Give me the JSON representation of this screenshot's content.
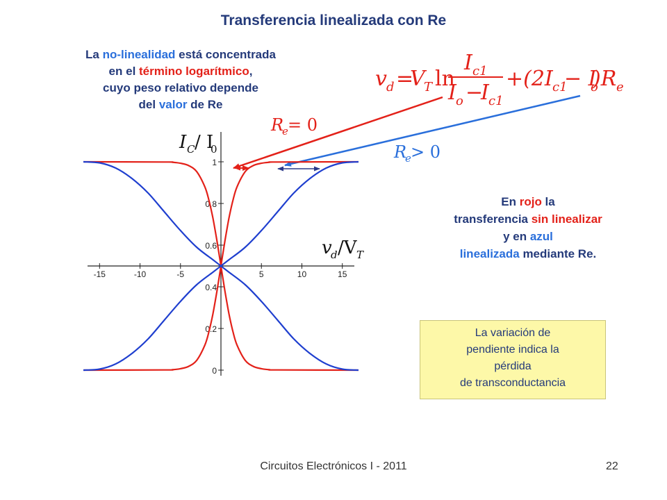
{
  "slide": {
    "title": "Transferencia linealizada con Re",
    "footer": "Circuitos Electrónicos I - 2011",
    "page_number": "22"
  },
  "description": {
    "p1": "La ",
    "p2": "no-linealidad",
    "p3": " está concentrada",
    "p4": "en el ",
    "p5": "término logarítmico",
    "p6": ",",
    "p7": "cuyo peso relativo depende",
    "p8": "del ",
    "p9": "valor",
    "p10": "  de Re"
  },
  "equation": {
    "lhs": "v",
    "lhs_sub": "d",
    "eq": "=",
    "vt": "V",
    "vt_sub": "T",
    "ln": "ln",
    "num": "I",
    "num_sub": "c1",
    "den_a": "I",
    "den_a_sub": "o",
    "minus": "−",
    "den_b": "I",
    "den_b_sub": "c1",
    "term2": "+(2I",
    "term2_sub": "c1",
    "term2b": " − I",
    "term2b_sub": "o",
    "term2c": ")R",
    "term2c_sub": "e"
  },
  "labels": {
    "re_zero": "R",
    "re_zero_sub": "e",
    "re_zero_rhs": " = 0",
    "re_pos": "R",
    "re_pos_sub": "e",
    "re_pos_rhs": " > 0",
    "y_axis": "I",
    "y_axis_sub": "C",
    "y_axis_slash": " / I",
    "y_axis_sub2": "0",
    "x_axis": "v",
    "x_axis_sub": "d",
    "x_axis_slash": " /V",
    "x_axis_sub2": "T"
  },
  "legend_text": {
    "l1a": "En ",
    "l1b": "rojo",
    "l1c": " la",
    "l2a": "transferencia ",
    "l2b": "sin linealizar",
    "l3a": "y en ",
    "l3b": "azul",
    "l4a": "linealizada",
    "l4b": " mediante Re."
  },
  "note": {
    "line1": "La variación de",
    "line2": "pendiente indica la",
    "line3": "pérdida",
    "line4": "de transconductancia"
  },
  "colors": {
    "red": "#e32119",
    "blue": "#1f3fcf",
    "text_blue": "#243a7a",
    "arrow_blue": "#2a6fdb",
    "note_bg": "#fdf8a8"
  },
  "chart_data": {
    "type": "line",
    "xlim": [
      -17,
      17
    ],
    "ylim": [
      0,
      1
    ],
    "x_ticks": [
      -15,
      -10,
      -5,
      5,
      10,
      15
    ],
    "x_tick_labels": [
      "-15",
      "-10",
      "-5",
      "5",
      "10",
      "15"
    ],
    "y_ticks": [
      0,
      0.2,
      0.4,
      0.6,
      0.8,
      1
    ],
    "y_tick_labels": [
      "0",
      "0.2",
      "0.4",
      "0.6",
      "0.8",
      "1"
    ],
    "x_axis_crosses_y_at": 0.5,
    "series": [
      {
        "color": "#e32119",
        "x": [
          -17,
          -7,
          -6,
          -5,
          -4,
          -3,
          -2,
          -1.5,
          -1,
          -0.5,
          0,
          0.5,
          1,
          1.5,
          2,
          3,
          4,
          5,
          6,
          7,
          17
        ],
        "y": [
          0,
          0.001,
          0.002,
          0.007,
          0.018,
          0.047,
          0.119,
          0.182,
          0.269,
          0.378,
          0.5,
          0.622,
          0.731,
          0.818,
          0.881,
          0.953,
          0.982,
          0.993,
          0.998,
          0.999,
          1
        ]
      },
      {
        "color": "#e32119",
        "x": [
          -17,
          -7,
          -6,
          -5,
          -4,
          -3,
          -2,
          -1.5,
          -1,
          -0.5,
          0,
          0.5,
          1,
          1.5,
          2,
          3,
          4,
          5,
          6,
          7,
          17
        ],
        "y": [
          1,
          0.999,
          0.998,
          0.993,
          0.982,
          0.953,
          0.881,
          0.818,
          0.731,
          0.622,
          0.5,
          0.378,
          0.269,
          0.182,
          0.119,
          0.047,
          0.018,
          0.007,
          0.002,
          0.001,
          0
        ]
      },
      {
        "color": "#1f3fcf",
        "x": [
          -17,
          -15,
          -13,
          -11,
          -9,
          -7,
          -5,
          -3,
          -1,
          0,
          1,
          3,
          5,
          7,
          9,
          11,
          13,
          15,
          17
        ],
        "y": [
          0,
          0.005,
          0.03,
          0.08,
          0.15,
          0.24,
          0.33,
          0.41,
          0.47,
          0.5,
          0.53,
          0.59,
          0.67,
          0.76,
          0.85,
          0.92,
          0.97,
          0.995,
          1
        ]
      },
      {
        "color": "#1f3fcf",
        "x": [
          -17,
          -15,
          -13,
          -11,
          -9,
          -7,
          -5,
          -3,
          -1,
          0,
          1,
          3,
          5,
          7,
          9,
          11,
          13,
          15,
          17
        ],
        "y": [
          1,
          0.995,
          0.97,
          0.92,
          0.85,
          0.76,
          0.67,
          0.59,
          0.53,
          0.5,
          0.47,
          0.41,
          0.33,
          0.24,
          0.15,
          0.08,
          0.03,
          0.005,
          0
        ]
      }
    ]
  }
}
